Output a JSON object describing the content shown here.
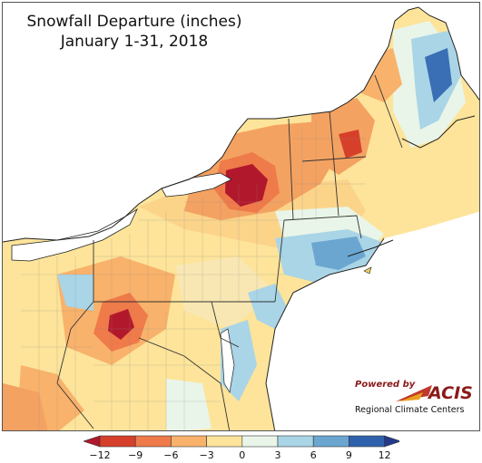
{
  "title": {
    "line1": "Snowfall Departure (inches)",
    "line2": "January 1-31, 2018"
  },
  "legend": {
    "ticks": [
      "−12",
      "−9",
      "−6",
      "−3",
      "0",
      "3",
      "6",
      "9",
      "12"
    ],
    "colors": [
      "#b2182b",
      "#d6402b",
      "#ef7a4a",
      "#f9b26b",
      "#fde49a",
      "#e9f5e8",
      "#a9d5e6",
      "#6aa6d0",
      "#2f62ad",
      "#233a8c"
    ]
  },
  "logo": {
    "powered_by": "Powered by",
    "brand": "ACIS",
    "subtitle": "Regional Climate Centers"
  },
  "colors": {
    "strong_deficit": "#a50f15",
    "deficit": "#e34a33",
    "moderate_deficit": "#f4a261",
    "slight_deficit": "#fde49a",
    "near_normal": "#e9f5e8",
    "surplus": "#a9d5e6",
    "strong_surplus": "#3a6fb5",
    "water": "#ffffff"
  }
}
